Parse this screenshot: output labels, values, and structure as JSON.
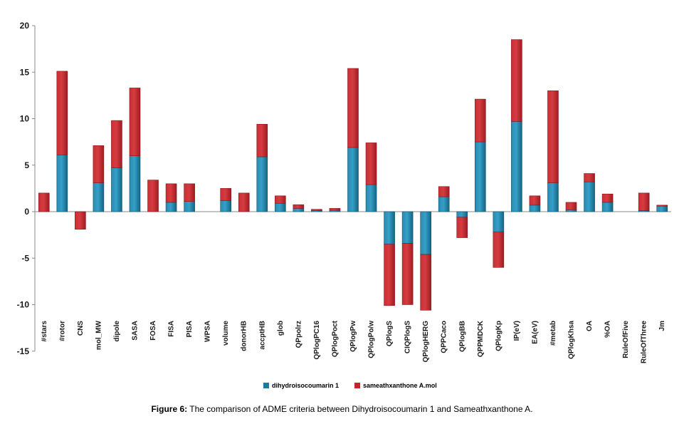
{
  "chart_data": {
    "type": "bar",
    "stacked": true,
    "categories": [
      "#stars",
      "#rotor",
      "CNS",
      "mol_MW",
      "dipole",
      "SASA",
      "FOSA",
      "FISA",
      "PISA",
      "WPSA",
      "volume",
      "donorHB",
      "accptHB",
      "glob",
      "QPpolrz",
      "QPlogPC16",
      "QPlogPoct",
      "QPlogPw",
      "QPlogPo/w",
      "QPlogS",
      "CIQPlogS",
      "QPlogHERG",
      "QPPCaco",
      "QPlogBB",
      "QPPMDCK",
      "QPlogKp",
      "IP(eV)",
      "EA(eV)",
      "#metab",
      "QPlogKhsa",
      "OA",
      "%OA",
      "RuleOfFive",
      "RuleOfThree",
      "Jm"
    ],
    "series": [
      {
        "name": "dihydroisocoumarin 1",
        "color": "#1f7a9e",
        "values": [
          0,
          6.1,
          0,
          3.1,
          4.7,
          6.0,
          0,
          1.0,
          1.1,
          0,
          1.2,
          0,
          5.9,
          0.9,
          0.35,
          0.1,
          0.15,
          6.9,
          2.9,
          -3.5,
          -3.4,
          -4.6,
          1.6,
          -0.6,
          7.5,
          -2.2,
          9.7,
          0.7,
          3.1,
          0.2,
          3.2,
          1.0,
          0,
          0.1,
          0.6
        ]
      },
      {
        "name": "sameathxanthone A.mol",
        "color": "#c0282d",
        "values": [
          2.0,
          9.0,
          -1.9,
          4.0,
          5.1,
          7.3,
          3.4,
          2.0,
          1.9,
          0,
          1.3,
          2.0,
          3.5,
          0.8,
          0.4,
          0.15,
          0.2,
          8.5,
          4.5,
          -6.6,
          -6.6,
          -6.0,
          1.1,
          -2.2,
          4.6,
          -3.8,
          8.8,
          1.0,
          9.9,
          0.8,
          0.9,
          0.9,
          0,
          1.9,
          0.1
        ]
      }
    ],
    "ylim": [
      -15,
      20
    ],
    "yticks": [
      20,
      15,
      10,
      5,
      0,
      -5,
      -10,
      -15
    ],
    "legend_position": "bottom",
    "grid": false
  },
  "caption": {
    "label": "Figure 6:",
    "text": "The comparison of ADME criteria between Dihydroisocoumarin 1 and Sameathxanthone A."
  }
}
